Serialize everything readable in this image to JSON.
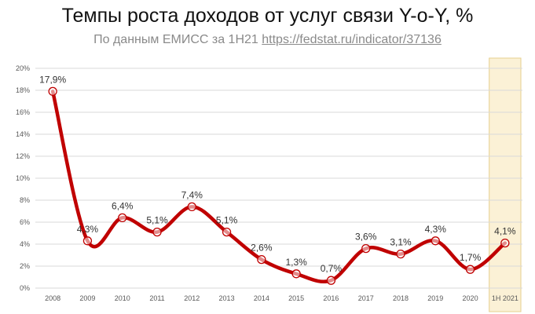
{
  "title": "Темпы роста доходов от услуг связи Y-o-Y, %",
  "subtitle": {
    "text": "По данным ЕМИСС за 1Н21",
    "link": "https://fedstat.ru/indicator/37136"
  },
  "colors": {
    "line": "#c00000",
    "highlight_fill": "#fbf1d6",
    "highlight_border": "#e6cf8f",
    "grid": "#d9d9d9"
  },
  "chart_data": {
    "type": "line",
    "title": "Темпы роста доходов от услуг связи Y-o-Y, %",
    "categories": [
      "2008",
      "2009",
      "2010",
      "2011",
      "2012",
      "2013",
      "2014",
      "2015",
      "2016",
      "2017",
      "2018",
      "2019",
      "2020",
      "1Н 2021"
    ],
    "values": [
      17.9,
      4.3,
      6.4,
      5.1,
      7.4,
      5.1,
      2.6,
      1.3,
      0.7,
      3.6,
      3.1,
      4.3,
      1.7,
      4.1
    ],
    "data_labels": [
      "17,9%",
      "4,3%",
      "6,4%",
      "5,1%",
      "7,4%",
      "5,1%",
      "2,6%",
      "1,3%",
      "0,7%",
      "3,6%",
      "3,1%",
      "4,3%",
      "1,7%",
      "4,1%"
    ],
    "y_ticks": [
      "0%",
      "2%",
      "4%",
      "6%",
      "8%",
      "10%",
      "12%",
      "14%",
      "16%",
      "18%",
      "20%"
    ],
    "ylim": [
      0,
      20
    ],
    "grid": true,
    "smooth": true,
    "highlight_category": "1Н 2021",
    "legend": "none"
  }
}
